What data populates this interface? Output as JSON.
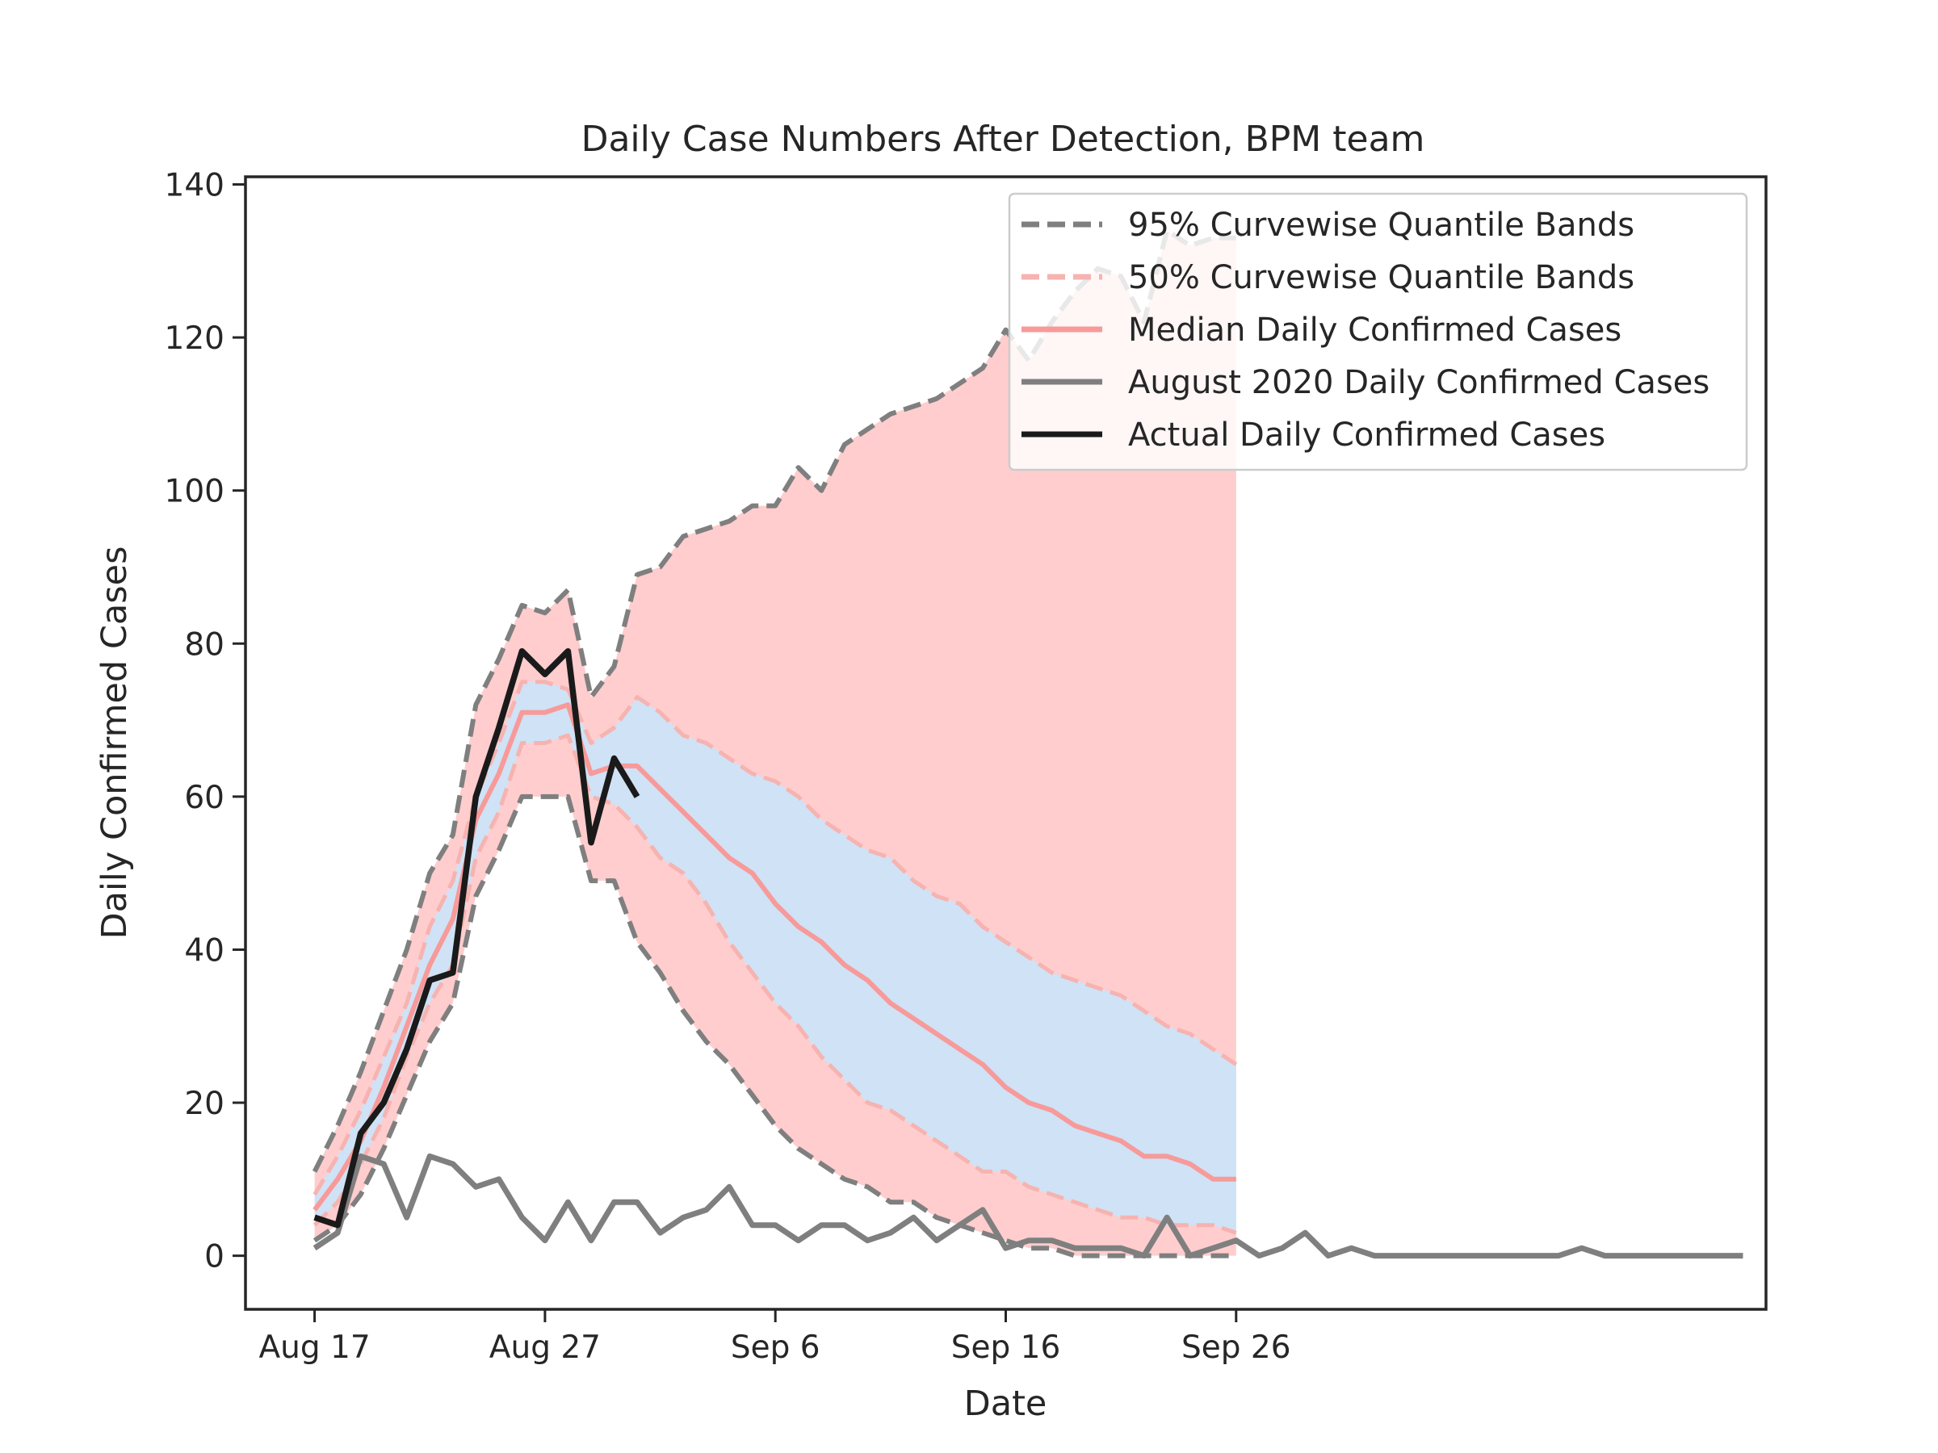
{
  "chart_data": {
    "type": "line",
    "title": "Daily Case Numbers After Detection, BPM team",
    "xlabel": "Date",
    "ylabel": "Daily Confirmed Cases",
    "xlim": [
      "2020-08-14",
      "2020-10-19"
    ],
    "ylim": [
      -7,
      141
    ],
    "x_start": "2020-08-17",
    "x_ticks": [
      {
        "date": "2020-08-17",
        "label": "Aug 17"
      },
      {
        "date": "2020-08-27",
        "label": "Aug 27"
      },
      {
        "date": "2020-09-06",
        "label": "Sep 6"
      },
      {
        "date": "2020-09-16",
        "label": "Sep 16"
      },
      {
        "date": "2020-09-26",
        "label": "Sep 26"
      }
    ],
    "y_ticks": [
      0,
      20,
      40,
      60,
      80,
      100,
      120,
      140
    ],
    "grid": false,
    "legend_position": "top-right",
    "colors": {
      "band95_fill": "#ffcaca",
      "band50_fill": "#cfe2f6",
      "band95_line": "#7f7f7f",
      "band50_line": "#f6b3b0",
      "median": "#f79a99",
      "august2020": "#7f7f7f",
      "actual": "#1a1a1a"
    },
    "legend": [
      {
        "label": "95% Curvewise Quantile Bands",
        "key": "band95",
        "style": "dashed",
        "color": "#7f7f7f"
      },
      {
        "label": "50% Curvewise Quantile Bands",
        "key": "band50",
        "style": "dashed",
        "color": "#f6b3b0"
      },
      {
        "label": "Median Daily Confirmed Cases",
        "key": "median",
        "style": "solid",
        "color": "#f79a99"
      },
      {
        "label": "August 2020 Daily Confirmed Cases",
        "key": "august2020",
        "style": "solid",
        "color": "#7f7f7f"
      },
      {
        "label": "Actual Daily Confirmed Cases",
        "key": "actual",
        "style": "solid",
        "color": "#1a1a1a"
      }
    ],
    "series": {
      "band95_upper": [
        11,
        17,
        24,
        32,
        40,
        50,
        55,
        72,
        78,
        85,
        84,
        87,
        73,
        77,
        89,
        90,
        94,
        95,
        96,
        98,
        98,
        103,
        100,
        106,
        108,
        110,
        111,
        112,
        114,
        116,
        121,
        117,
        122,
        126,
        129,
        128,
        122,
        134,
        132,
        133,
        133
      ],
      "band95_lower": [
        2,
        4,
        8,
        14,
        21,
        28,
        33,
        47,
        53,
        60,
        60,
        60,
        49,
        49,
        41,
        37,
        32,
        28,
        25,
        21,
        17,
        14,
        12,
        10,
        9,
        7,
        7,
        5,
        4,
        3,
        2,
        1,
        1,
        0,
        0,
        0,
        0,
        0,
        0,
        0,
        0
      ],
      "band50_upper": [
        8,
        13,
        19,
        26,
        33,
        43,
        49,
        60,
        67,
        75,
        75,
        74,
        67,
        69,
        73,
        71,
        68,
        67,
        65,
        63,
        62,
        60,
        57,
        55,
        53,
        52,
        49,
        47,
        46,
        43,
        41,
        39,
        37,
        36,
        35,
        34,
        32,
        30,
        29,
        27,
        25
      ],
      "band50_lower": [
        4,
        7,
        12,
        18,
        26,
        33,
        38,
        52,
        58,
        67,
        67,
        68,
        60,
        59,
        56,
        52,
        50,
        46,
        41,
        37,
        33,
        30,
        26,
        23,
        20,
        19,
        17,
        15,
        13,
        11,
        11,
        9,
        8,
        7,
        6,
        5,
        5,
        4,
        4,
        4,
        3
      ],
      "median": [
        6,
        10,
        15,
        22,
        30,
        38,
        44,
        57,
        63,
        71,
        71,
        72,
        63,
        64,
        64,
        61,
        58,
        55,
        52,
        50,
        46,
        43,
        41,
        38,
        36,
        33,
        31,
        29,
        27,
        25,
        22,
        20,
        19,
        17,
        16,
        15,
        13,
        13,
        12,
        10,
        10
      ],
      "august2020": [
        1,
        3,
        13,
        12,
        5,
        13,
        12,
        9,
        10,
        5,
        2,
        7,
        2,
        7,
        7,
        3,
        5,
        6,
        9,
        4,
        4,
        2,
        4,
        4,
        2,
        3,
        5,
        2,
        4,
        6,
        1,
        2,
        2,
        1,
        1,
        1,
        0,
        5,
        0,
        1,
        2,
        0,
        1,
        3,
        0,
        1,
        0,
        0,
        0,
        0,
        0,
        0,
        0,
        0,
        0,
        1,
        0,
        0,
        0,
        0,
        0,
        0,
        0
      ],
      "actual": [
        5,
        4,
        16,
        20,
        27,
        36,
        37,
        60,
        69,
        79,
        76,
        79,
        54,
        65,
        60
      ]
    }
  }
}
